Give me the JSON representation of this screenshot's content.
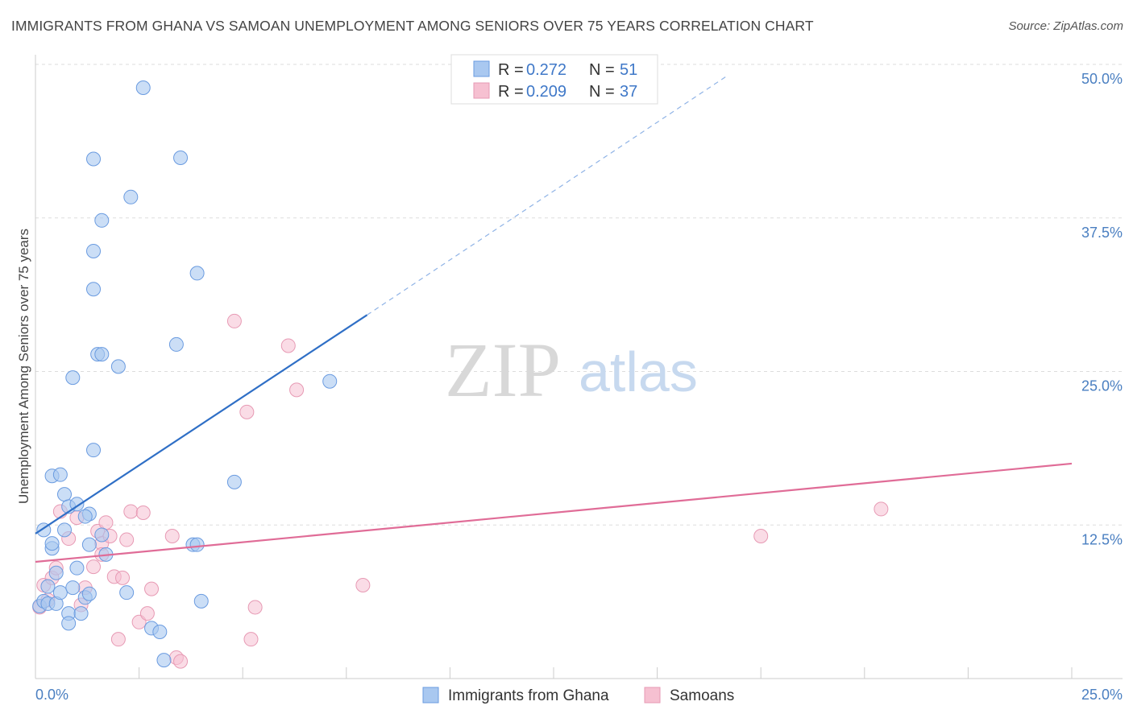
{
  "title": "IMMIGRANTS FROM GHANA VS SAMOAN UNEMPLOYMENT AMONG SENIORS OVER 75 YEARS CORRELATION CHART",
  "source": "Source: ZipAtlas.com",
  "watermark": {
    "zip": "ZIP",
    "atlas": "atlas"
  },
  "legend_box": {
    "r_label": "R =",
    "n_label": "N =",
    "rows": [
      {
        "r": "0.272",
        "n": "51"
      },
      {
        "r": "0.209",
        "n": "37"
      }
    ]
  },
  "colors": {
    "blue_fill": "#a9c8f0",
    "blue_stroke": "#6a9be0",
    "blue_line": "#2f6fc6",
    "pink_fill": "#f6c0d1",
    "pink_stroke": "#e79ab4",
    "pink_line": "#e06c97",
    "tick_color": "#4a7fc1",
    "grid": "#dddddd"
  },
  "chart_data": {
    "type": "scatter",
    "ylabel": "Unemployment Among Seniors over 75 years",
    "x_tick_labels": [
      "0.0%",
      "25.0%"
    ],
    "y_tick_labels": [
      "12.5%",
      "25.0%",
      "37.5%",
      "50.0%"
    ],
    "x_ticks": [
      0,
      25
    ],
    "y_ticks": [
      12.5,
      25.0,
      37.5,
      50.0
    ],
    "xlim": [
      0,
      25
    ],
    "ylim": [
      0,
      50
    ],
    "grid": true,
    "legend_position": "top-center",
    "series": [
      {
        "name": "Immigrants from Ghana",
        "r": 0.272,
        "n": 51,
        "trend": {
          "x0": 0,
          "y0": 11.8,
          "x1": 8.0,
          "y1": 29.6,
          "dashed_to_x": 16.7,
          "dashed_to_y": 49.1
        },
        "points": [
          [
            0.1,
            5.9
          ],
          [
            0.2,
            6.3
          ],
          [
            0.3,
            6.1
          ],
          [
            0.3,
            7.5
          ],
          [
            0.4,
            10.6
          ],
          [
            0.4,
            11.0
          ],
          [
            0.5,
            8.6
          ],
          [
            0.5,
            6.1
          ],
          [
            0.6,
            7.0
          ],
          [
            0.7,
            12.1
          ],
          [
            0.8,
            5.3
          ],
          [
            0.8,
            4.5
          ],
          [
            0.2,
            12.1
          ],
          [
            0.9,
            7.4
          ],
          [
            1.0,
            9.0
          ],
          [
            1.1,
            5.3
          ],
          [
            1.2,
            6.6
          ],
          [
            1.3,
            6.9
          ],
          [
            1.3,
            10.9
          ],
          [
            1.3,
            13.4
          ],
          [
            1.4,
            18.6
          ],
          [
            0.4,
            16.5
          ],
          [
            0.6,
            16.6
          ],
          [
            0.7,
            15.0
          ],
          [
            0.8,
            14.0
          ],
          [
            1.0,
            14.2
          ],
          [
            1.2,
            13.2
          ],
          [
            1.6,
            11.7
          ],
          [
            1.7,
            10.1
          ],
          [
            0.9,
            24.5
          ],
          [
            1.5,
            26.4
          ],
          [
            1.6,
            26.4
          ],
          [
            2.0,
            25.4
          ],
          [
            1.4,
            31.7
          ],
          [
            1.4,
            34.8
          ],
          [
            1.4,
            42.3
          ],
          [
            1.6,
            37.3
          ],
          [
            2.3,
            39.2
          ],
          [
            2.6,
            48.1
          ],
          [
            3.5,
            42.4
          ],
          [
            3.4,
            27.2
          ],
          [
            3.9,
            33.0
          ],
          [
            4.8,
            16.0
          ],
          [
            7.1,
            24.2
          ],
          [
            3.8,
            10.9
          ],
          [
            3.9,
            10.9
          ],
          [
            4.0,
            6.3
          ],
          [
            2.8,
            4.1
          ],
          [
            3.0,
            3.8
          ],
          [
            3.1,
            1.5
          ],
          [
            2.2,
            7.0
          ]
        ]
      },
      {
        "name": "Samoans",
        "r": 0.209,
        "n": 37,
        "trend": {
          "x0": 0,
          "y0": 9.5,
          "x1": 25,
          "y1": 17.5
        },
        "points": [
          [
            0.1,
            5.8
          ],
          [
            0.2,
            7.6
          ],
          [
            0.3,
            6.4
          ],
          [
            0.4,
            8.2
          ],
          [
            0.5,
            9.0
          ],
          [
            0.6,
            13.6
          ],
          [
            0.8,
            11.4
          ],
          [
            1.0,
            13.1
          ],
          [
            1.2,
            7.4
          ],
          [
            1.4,
            9.1
          ],
          [
            1.5,
            12.0
          ],
          [
            1.6,
            11.0
          ],
          [
            1.6,
            10.1
          ],
          [
            1.7,
            12.7
          ],
          [
            1.8,
            11.6
          ],
          [
            1.9,
            8.3
          ],
          [
            2.0,
            3.2
          ],
          [
            2.1,
            8.2
          ],
          [
            2.2,
            11.3
          ],
          [
            2.3,
            13.6
          ],
          [
            2.5,
            4.6
          ],
          [
            2.6,
            13.5
          ],
          [
            2.7,
            5.3
          ],
          [
            2.8,
            7.3
          ],
          [
            3.3,
            11.6
          ],
          [
            3.4,
            1.7
          ],
          [
            3.5,
            1.4
          ],
          [
            4.8,
            29.1
          ],
          [
            5.1,
            21.7
          ],
          [
            5.2,
            3.2
          ],
          [
            5.3,
            5.8
          ],
          [
            6.1,
            27.1
          ],
          [
            6.3,
            23.5
          ],
          [
            7.9,
            7.6
          ],
          [
            17.5,
            11.6
          ],
          [
            20.4,
            13.8
          ],
          [
            1.1,
            6.0
          ]
        ]
      }
    ]
  },
  "bottom_legend": [
    {
      "label": "Immigrants from Ghana"
    },
    {
      "label": "Samoans"
    }
  ]
}
